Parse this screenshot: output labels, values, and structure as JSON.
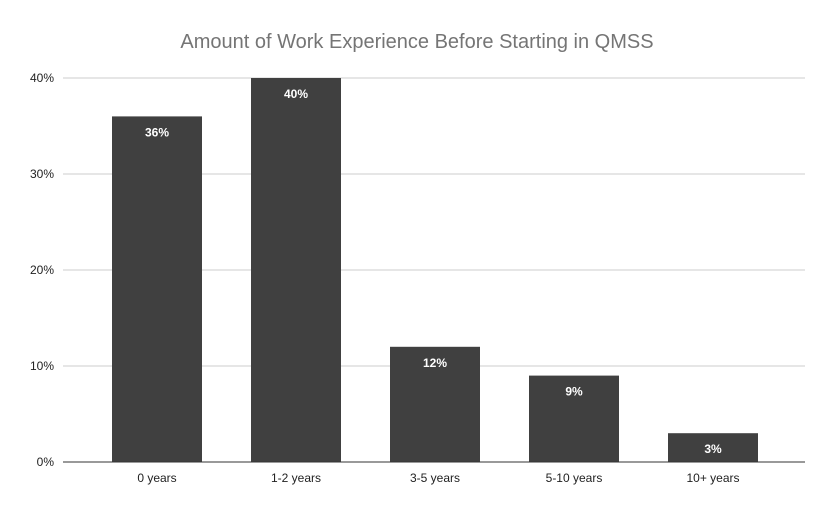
{
  "chart_data": {
    "type": "bar",
    "title": "Amount of Work Experience Before Starting in QMSS",
    "xlabel": "",
    "ylabel": "",
    "categories": [
      "0 years",
      "1-2 years",
      "3-5 years",
      "5-10 years",
      "10+ years"
    ],
    "values": [
      36,
      40,
      12,
      9,
      3
    ],
    "data_labels": [
      "36%",
      "40%",
      "12%",
      "9%",
      "3%"
    ],
    "ylim": [
      0,
      40
    ],
    "yticks": [
      0,
      10,
      20,
      30,
      40
    ],
    "ytick_labels": [
      "0%",
      "10%",
      "20%",
      "30%",
      "40%"
    ],
    "grid": true,
    "legend": "none",
    "bar_color": "#404040",
    "gridline_color": "#cccccc",
    "axis_color": "#333333",
    "title_color": "#757575"
  }
}
